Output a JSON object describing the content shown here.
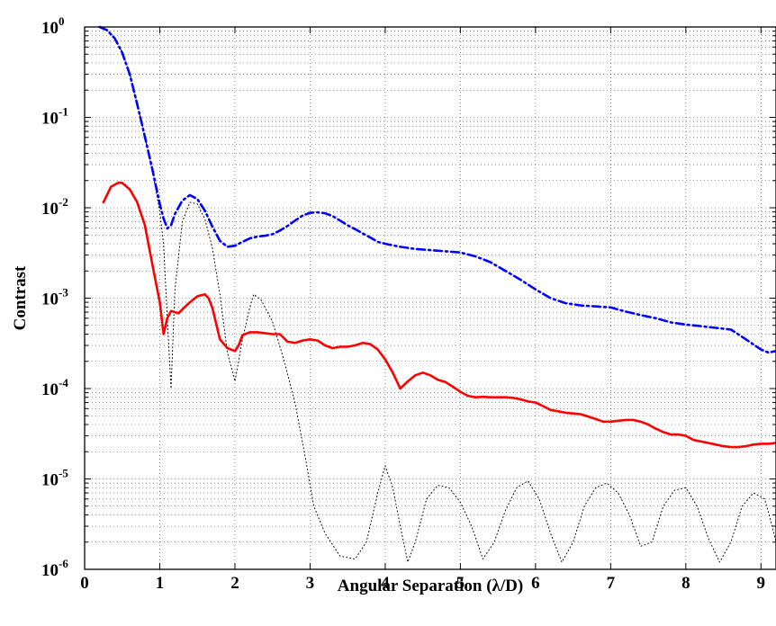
{
  "chart_data": {
    "type": "line",
    "title": "",
    "xlabel": "Angular Separation (λ/D)",
    "ylabel": "Contrast",
    "xlim": [
      0,
      9.2
    ],
    "ylim": [
      1e-06,
      1
    ],
    "yscale": "log",
    "grid": true,
    "legend": "none",
    "x_ticks": [
      "0",
      "1",
      "2",
      "3",
      "4",
      "5",
      "6",
      "7",
      "8",
      "9"
    ],
    "y_ticks": [
      {
        "base": "10",
        "exp": "0"
      },
      {
        "base": "10",
        "exp": "-1"
      },
      {
        "base": "10",
        "exp": "-2"
      },
      {
        "base": "10",
        "exp": "-3"
      },
      {
        "base": "10",
        "exp": "-4"
      },
      {
        "base": "10",
        "exp": "-5"
      },
      {
        "base": "10",
        "exp": "-6"
      }
    ],
    "series": [
      {
        "color": "#0000ff",
        "style": "dash-dot",
        "x": [
          0.2,
          0.3,
          0.4,
          0.5,
          0.6,
          0.7,
          0.8,
          0.9,
          1.0,
          1.05,
          1.1,
          1.15,
          1.2,
          1.3,
          1.4,
          1.5,
          1.6,
          1.7,
          1.8,
          1.9,
          2.0,
          2.1,
          2.2,
          2.3,
          2.4,
          2.5,
          2.6,
          2.7,
          2.8,
          2.9,
          3.0,
          3.1,
          3.2,
          3.3,
          3.4,
          3.5,
          3.6,
          3.7,
          3.8,
          3.9,
          4.0,
          4.2,
          4.4,
          4.6,
          4.8,
          5.0,
          5.2,
          5.4,
          5.6,
          5.8,
          6.0,
          6.2,
          6.4,
          6.6,
          6.8,
          7.0,
          7.2,
          7.4,
          7.6,
          7.8,
          8.0,
          8.2,
          8.4,
          8.6,
          8.8,
          9.0,
          9.1,
          9.2
        ],
        "y": [
          1.0,
          0.92,
          0.75,
          0.52,
          0.3,
          0.14,
          0.062,
          0.027,
          0.011,
          0.0076,
          0.0059,
          0.0064,
          0.0085,
          0.012,
          0.0138,
          0.0125,
          0.0093,
          0.0062,
          0.0043,
          0.0037,
          0.0038,
          0.0042,
          0.0046,
          0.0048,
          0.0049,
          0.0051,
          0.0056,
          0.0063,
          0.0072,
          0.0082,
          0.0088,
          0.0089,
          0.0087,
          0.0081,
          0.0072,
          0.0064,
          0.0058,
          0.0052,
          0.0047,
          0.0042,
          0.004,
          0.0037,
          0.0035,
          0.0034,
          0.0033,
          0.0032,
          0.0029,
          0.0025,
          0.002,
          0.0016,
          0.00125,
          0.001,
          0.00088,
          0.00083,
          0.00081,
          0.00079,
          0.00071,
          0.00065,
          0.0006,
          0.00054,
          0.00051,
          0.00049,
          0.00047,
          0.00045,
          0.00035,
          0.00027,
          0.00025,
          0.00026
        ]
      },
      {
        "color": "#ff0000",
        "style": "solid",
        "x": [
          0.25,
          0.35,
          0.45,
          0.5,
          0.6,
          0.7,
          0.8,
          0.9,
          1.0,
          1.05,
          1.1,
          1.15,
          1.2,
          1.25,
          1.3,
          1.4,
          1.5,
          1.6,
          1.65,
          1.7,
          1.8,
          1.9,
          2.0,
          2.05,
          2.1,
          2.2,
          2.3,
          2.4,
          2.5,
          2.6,
          2.7,
          2.8,
          2.9,
          3.0,
          3.1,
          3.2,
          3.3,
          3.4,
          3.5,
          3.6,
          3.7,
          3.8,
          3.9,
          4.0,
          4.1,
          4.2,
          4.3,
          4.4,
          4.5,
          4.6,
          4.7,
          4.8,
          4.9,
          5.0,
          5.1,
          5.2,
          5.3,
          5.4,
          5.5,
          5.6,
          5.7,
          5.8,
          5.9,
          6.0,
          6.1,
          6.2,
          6.3,
          6.4,
          6.5,
          6.6,
          6.7,
          6.8,
          6.9,
          7.0,
          7.1,
          7.2,
          7.3,
          7.4,
          7.5,
          7.6,
          7.7,
          7.8,
          7.9,
          8.0,
          8.1,
          8.2,
          8.3,
          8.4,
          8.5,
          8.6,
          8.7,
          8.8,
          8.9,
          9.0,
          9.1,
          9.2
        ],
        "y": [
          0.0115,
          0.017,
          0.019,
          0.0188,
          0.016,
          0.0115,
          0.0065,
          0.0024,
          0.0009,
          0.0004,
          0.0006,
          0.00072,
          0.0007,
          0.00068,
          0.00075,
          0.0009,
          0.00105,
          0.0011,
          0.001,
          0.00078,
          0.00035,
          0.00028,
          0.00026,
          0.0003,
          0.00039,
          0.00042,
          0.00042,
          0.00041,
          0.0004,
          0.0004,
          0.00033,
          0.00032,
          0.00034,
          0.00035,
          0.00034,
          0.0003,
          0.00028,
          0.00029,
          0.00029,
          0.0003,
          0.00032,
          0.00031,
          0.00027,
          0.00021,
          0.00015,
          0.0001,
          0.00012,
          0.00014,
          0.00015,
          0.00014,
          0.000125,
          0.000118,
          0.000105,
          9.2e-05,
          8.3e-05,
          8e-05,
          8.1e-05,
          8e-05,
          8e-05,
          8e-05,
          7.9e-05,
          7.6e-05,
          7.2e-05,
          7e-05,
          6.4e-05,
          5.8e-05,
          5.6e-05,
          5.4e-05,
          5.3e-05,
          5.2e-05,
          4.9e-05,
          4.6e-05,
          4.3e-05,
          4.3e-05,
          4.4e-05,
          4.5e-05,
          4.5e-05,
          4.3e-05,
          4e-05,
          3.6e-05,
          3.3e-05,
          3.1e-05,
          3.1e-05,
          3e-05,
          2.7e-05,
          2.6e-05,
          2.5e-05,
          2.4e-05,
          2.3e-05,
          2.25e-05,
          2.25e-05,
          2.3e-05,
          2.4e-05,
          2.45e-05,
          2.45e-05,
          2.5e-05
        ]
      },
      {
        "color": "#000000",
        "style": "dotted",
        "x": [
          0.2,
          0.3,
          0.4,
          0.5,
          0.6,
          0.7,
          0.8,
          0.9,
          1.0,
          1.05,
          1.1,
          1.15,
          1.2,
          1.3,
          1.4,
          1.5,
          1.6,
          1.7,
          1.8,
          1.9,
          2.0,
          2.1,
          2.2,
          2.25,
          2.35,
          2.5,
          2.65,
          2.8,
          2.95,
          3.05,
          3.2,
          3.4,
          3.6,
          3.75,
          3.9,
          4.0,
          4.1,
          4.2,
          4.3,
          4.4,
          4.55,
          4.7,
          4.85,
          5.0,
          5.15,
          5.3,
          5.45,
          5.6,
          5.75,
          5.9,
          6.05,
          6.2,
          6.35,
          6.5,
          6.65,
          6.8,
          6.95,
          7.1,
          7.25,
          7.4,
          7.55,
          7.7,
          7.85,
          8.0,
          8.15,
          8.3,
          8.45,
          8.6,
          8.75,
          8.9,
          9.05,
          9.15,
          9.2
        ],
        "y": [
          1.0,
          0.93,
          0.76,
          0.53,
          0.31,
          0.14,
          0.062,
          0.026,
          0.009,
          0.004,
          0.0006,
          0.0001,
          0.0012,
          0.007,
          0.0115,
          0.011,
          0.0075,
          0.0036,
          0.0011,
          0.00025,
          0.00012,
          0.00035,
          0.0008,
          0.0011,
          0.00095,
          0.00055,
          0.00021,
          7e-05,
          1.5e-05,
          5e-06,
          2.5e-06,
          1.4e-06,
          1.3e-06,
          2e-06,
          7e-06,
          1.4e-05,
          8e-06,
          3e-06,
          1.2e-06,
          2e-06,
          6e-06,
          8.5e-06,
          8e-06,
          5.5e-06,
          3e-06,
          1.3e-06,
          2e-06,
          4.5e-06,
          8e-06,
          9.5e-06,
          6e-06,
          2.5e-06,
          1.2e-06,
          2e-06,
          5e-06,
          8e-06,
          9e-06,
          7e-06,
          4e-06,
          1.8e-06,
          2e-06,
          5e-06,
          7.5e-06,
          8e-06,
          5e-06,
          2.2e-06,
          1.2e-06,
          2e-06,
          5e-06,
          7e-06,
          6e-06,
          3e-06,
          2e-06
        ]
      }
    ]
  }
}
